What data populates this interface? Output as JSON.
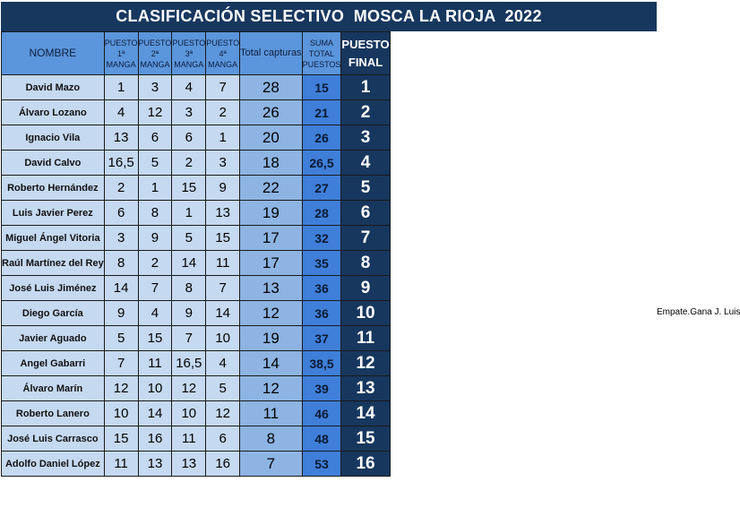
{
  "title": "CLASIFICACIÓN SELECTIVO  MOSCA LA RIOJA  2022",
  "headers": {
    "nombre": "NOMBRE",
    "m1": "PUESTO 1ª MANGA",
    "m2": "PUESTO 2ª MANGA",
    "m3": "PUESTO 3ª MANGA",
    "m4": "PUESTO 4ª MANGA",
    "capturas": "Total capturas",
    "suma": "SUMA TOTAL PUESTOS",
    "final": "PUESTO FINAL"
  },
  "rows": [
    {
      "nombre": "David Mazo",
      "m1": "1",
      "m2": "3",
      "m3": "4",
      "m4": "7",
      "capturas": "28",
      "suma": "15",
      "final": "1"
    },
    {
      "nombre": "Álvaro Lozano",
      "m1": "4",
      "m2": "12",
      "m3": "3",
      "m4": "2",
      "capturas": "26",
      "suma": "21",
      "final": "2"
    },
    {
      "nombre": "Ignacio Vila",
      "m1": "13",
      "m2": "6",
      "m3": "6",
      "m4": "1",
      "capturas": "20",
      "suma": "26",
      "final": "3"
    },
    {
      "nombre": "David Calvo",
      "m1": "16,5",
      "m2": "5",
      "m3": "2",
      "m4": "3",
      "capturas": "18",
      "suma": "26,5",
      "final": "4"
    },
    {
      "nombre": "Roberto Hernández",
      "m1": "2",
      "m2": "1",
      "m3": "15",
      "m4": "9",
      "capturas": "22",
      "suma": "27",
      "final": "5"
    },
    {
      "nombre": "Luis Javier Perez",
      "m1": "6",
      "m2": "8",
      "m3": "1",
      "m4": "13",
      "capturas": "19",
      "suma": "28",
      "final": "6"
    },
    {
      "nombre": "Miguel Ángel Vitoria",
      "m1": "3",
      "m2": "9",
      "m3": "5",
      "m4": "15",
      "capturas": "17",
      "suma": "32",
      "final": "7"
    },
    {
      "nombre": "Raúl Martínez del Rey",
      "m1": "8",
      "m2": "2",
      "m3": "14",
      "m4": "11",
      "capturas": "17",
      "suma": "35",
      "final": "8"
    },
    {
      "nombre": "José Luis Jiménez",
      "m1": "14",
      "m2": "7",
      "m3": "8",
      "m4": "7",
      "capturas": "13",
      "suma": "36",
      "final": "9"
    },
    {
      "nombre": "Diego García",
      "m1": "9",
      "m2": "4",
      "m3": "9",
      "m4": "14",
      "capturas": "12",
      "suma": "36",
      "final": "10"
    },
    {
      "nombre": "Javier Aguado",
      "m1": "5",
      "m2": "15",
      "m3": "7",
      "m4": "10",
      "capturas": "19",
      "suma": "37",
      "final": "11"
    },
    {
      "nombre": "Angel Gabarri",
      "m1": "7",
      "m2": "11",
      "m3": "16,5",
      "m4": "4",
      "capturas": "14",
      "suma": "38,5",
      "final": "12"
    },
    {
      "nombre": "Álvaro Marín",
      "m1": "12",
      "m2": "10",
      "m3": "12",
      "m4": "5",
      "capturas": "12",
      "suma": "39",
      "final": "13"
    },
    {
      "nombre": "Roberto Lanero",
      "m1": "10",
      "m2": "14",
      "m3": "10",
      "m4": "12",
      "capturas": "11",
      "suma": "46",
      "final": "14"
    },
    {
      "nombre": "José Luis Carrasco",
      "m1": "15",
      "m2": "16",
      "m3": "11",
      "m4": "6",
      "capturas": "8",
      "suma": "48",
      "final": "15"
    },
    {
      "nombre": "Adolfo Daniel López",
      "m1": "11",
      "m2": "13",
      "m3": "13",
      "m4": "16",
      "capturas": "7",
      "suma": "53",
      "final": "16"
    }
  ],
  "note": "Empate.Gana J. Luis",
  "colors": {
    "title_bg": "#17375E",
    "header_bg": "#5B95DB",
    "cell_bg": "#C5D9F1",
    "capturas_bg": "#8DB4E2",
    "suma_bg": "#3F7FD9",
    "final_bg": "#17375E"
  }
}
